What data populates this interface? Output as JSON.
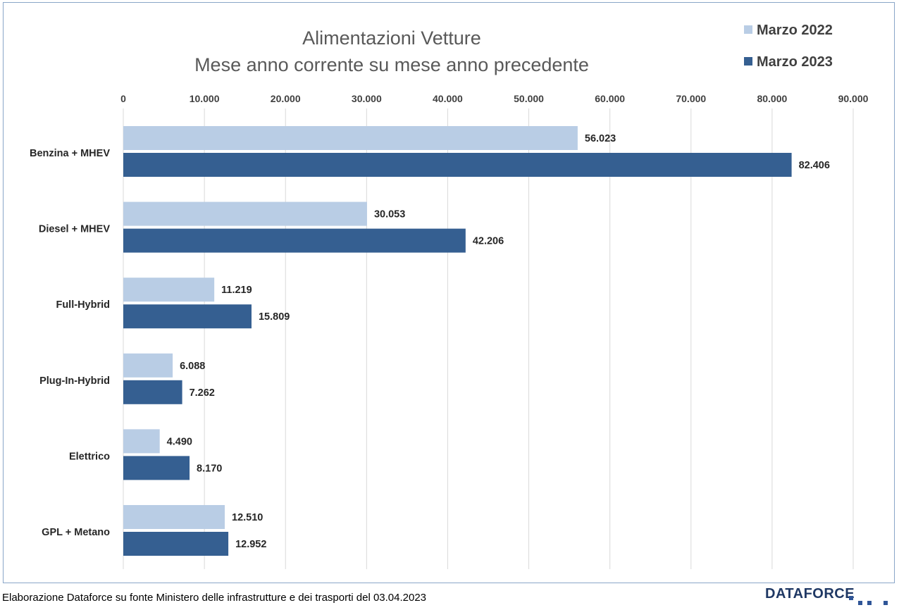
{
  "chart_data": {
    "type": "bar",
    "orientation": "horizontal",
    "title": [
      "Alimentazioni Vetture",
      "Mese anno corrente su mese anno precedente"
    ],
    "categories": [
      "Benzina + MHEV",
      "Diesel + MHEV",
      "Full-Hybrid",
      "Plug-In-Hybrid",
      "Elettrico",
      "GPL + Metano"
    ],
    "series": [
      {
        "name": "Marzo 2022",
        "color": "#b9cde5",
        "values": [
          56023,
          30053,
          11219,
          6088,
          4490,
          12510
        ],
        "labels": [
          "56.023",
          "30.053",
          "11.219",
          "6.088",
          "4.490",
          "12.510"
        ]
      },
      {
        "name": "Marzo 2023",
        "color": "#355f91",
        "values": [
          82406,
          42206,
          15809,
          7262,
          8170,
          12952
        ],
        "labels": [
          "82.406",
          "42.206",
          "15.809",
          "7.262",
          "8.170",
          "12.952"
        ]
      }
    ],
    "xlim": [
      0,
      90000
    ],
    "xticks": [
      0,
      10000,
      20000,
      30000,
      40000,
      50000,
      60000,
      70000,
      80000,
      90000
    ],
    "xtick_labels": [
      "0",
      "10.000",
      "20.000",
      "30.000",
      "40.000",
      "50.000",
      "60.000",
      "70.000",
      "80.000",
      "90.000"
    ],
    "xaxis_position": "top",
    "grid": true,
    "legend_position": "top-right",
    "data_labels": true
  },
  "footer": {
    "source": "Elaborazione Dataforce su fonte Ministero delle infrastrutture e dei trasporti del 03.04.2023",
    "logo_text": "DATAFORCE"
  }
}
